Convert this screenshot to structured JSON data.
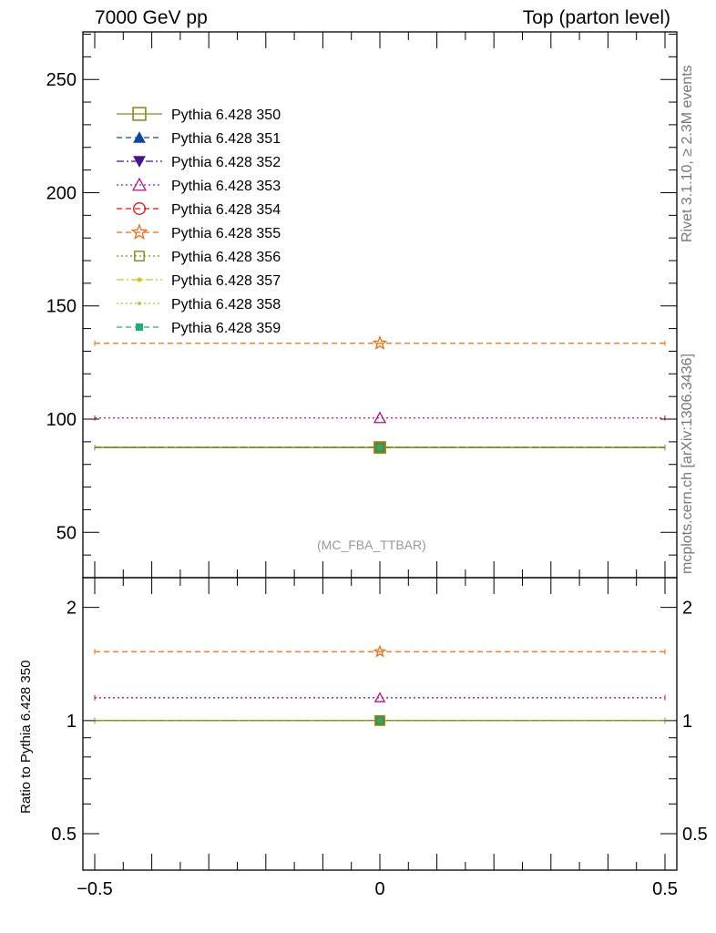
{
  "header": {
    "left": "7000 GeV pp",
    "right": "Top (parton level)"
  },
  "side_labels": {
    "rivet": "Rivet 3.1.10, ≥ 2.3M events",
    "mcplots": "mcplots.cern.ch [arXiv:1306.3436]"
  },
  "analysis_tag": "(MC_FBA_TTBAR)",
  "ratio_ylabel": "Ratio to Pythia 6.428 350",
  "chart_data": [
    {
      "type": "scatter",
      "panel": "main",
      "x": [
        0
      ],
      "xerr": [
        0.5
      ],
      "xlim": [
        -0.5,
        0.5
      ],
      "ylim": [
        30,
        271
      ],
      "yticks": [
        50,
        100,
        150,
        200,
        250
      ],
      "xticks": [
        -0.5,
        0,
        0.5
      ],
      "legend_position": "top-left",
      "series": [
        {
          "name": "Pythia 6.428 350",
          "values": [
            87.5
          ],
          "color": "#8B8B1E",
          "marker": "square-open",
          "dash": "solid"
        },
        {
          "name": "Pythia 6.428 351",
          "values": [
            87.5
          ],
          "color": "#0D47A1",
          "marker": "triangle-up",
          "dash": "dashed"
        },
        {
          "name": "Pythia 6.428 352",
          "values": [
            87.5
          ],
          "color": "#4A148C",
          "marker": "triangle-down",
          "dash": "dashdot"
        },
        {
          "name": "Pythia 6.428 353",
          "values": [
            100.5
          ],
          "color": "#B2128C",
          "marker": "triangle-up-open",
          "dash": "dotted"
        },
        {
          "name": "Pythia 6.428 354",
          "values": [
            87.5
          ],
          "color": "#E01010",
          "marker": "circle-open",
          "dash": "dashed"
        },
        {
          "name": "Pythia 6.428 355",
          "values": [
            133.5
          ],
          "color": "#F26B0F",
          "marker": "star-open",
          "dash": "dashed"
        },
        {
          "name": "Pythia 6.428 356",
          "values": [
            87.5
          ],
          "color": "#7E8B12",
          "marker": "square-open-small",
          "dash": "dotted"
        },
        {
          "name": "Pythia 6.428 357",
          "values": [
            87.5
          ],
          "color": "#CFC81A",
          "marker": "dot",
          "dash": "dashdot"
        },
        {
          "name": "Pythia 6.428 358",
          "values": [
            87.5
          ],
          "color": "#A4CC1F",
          "marker": "dot-small",
          "dash": "dotted"
        },
        {
          "name": "Pythia 6.428 359",
          "values": [
            87.5
          ],
          "color": "#1BB07A",
          "marker": "square-filled",
          "dash": "dashed"
        }
      ]
    },
    {
      "type": "scatter",
      "panel": "ratio",
      "ylabel": "Ratio to Pythia 6.428 350",
      "yscale": "log",
      "x": [
        0
      ],
      "xerr": [
        0.5
      ],
      "xlim": [
        -0.5,
        0.5
      ],
      "ylim": [
        0.4,
        2.4
      ],
      "yticks": [
        0.5,
        1,
        2
      ],
      "xticks": [
        -0.5,
        0,
        0.5
      ],
      "series": [
        {
          "name": "Pythia 6.428 350",
          "values": [
            1.0
          ]
        },
        {
          "name": "Pythia 6.428 351",
          "values": [
            1.0
          ]
        },
        {
          "name": "Pythia 6.428 352",
          "values": [
            1.0
          ]
        },
        {
          "name": "Pythia 6.428 353",
          "values": [
            1.15
          ]
        },
        {
          "name": "Pythia 6.428 354",
          "values": [
            1.0
          ]
        },
        {
          "name": "Pythia 6.428 355",
          "values": [
            1.525
          ]
        },
        {
          "name": "Pythia 6.428 356",
          "values": [
            1.0
          ]
        },
        {
          "name": "Pythia 6.428 357",
          "values": [
            1.0
          ]
        },
        {
          "name": "Pythia 6.428 358",
          "values": [
            1.0
          ]
        },
        {
          "name": "Pythia 6.428 359",
          "values": [
            1.0
          ]
        }
      ]
    }
  ]
}
